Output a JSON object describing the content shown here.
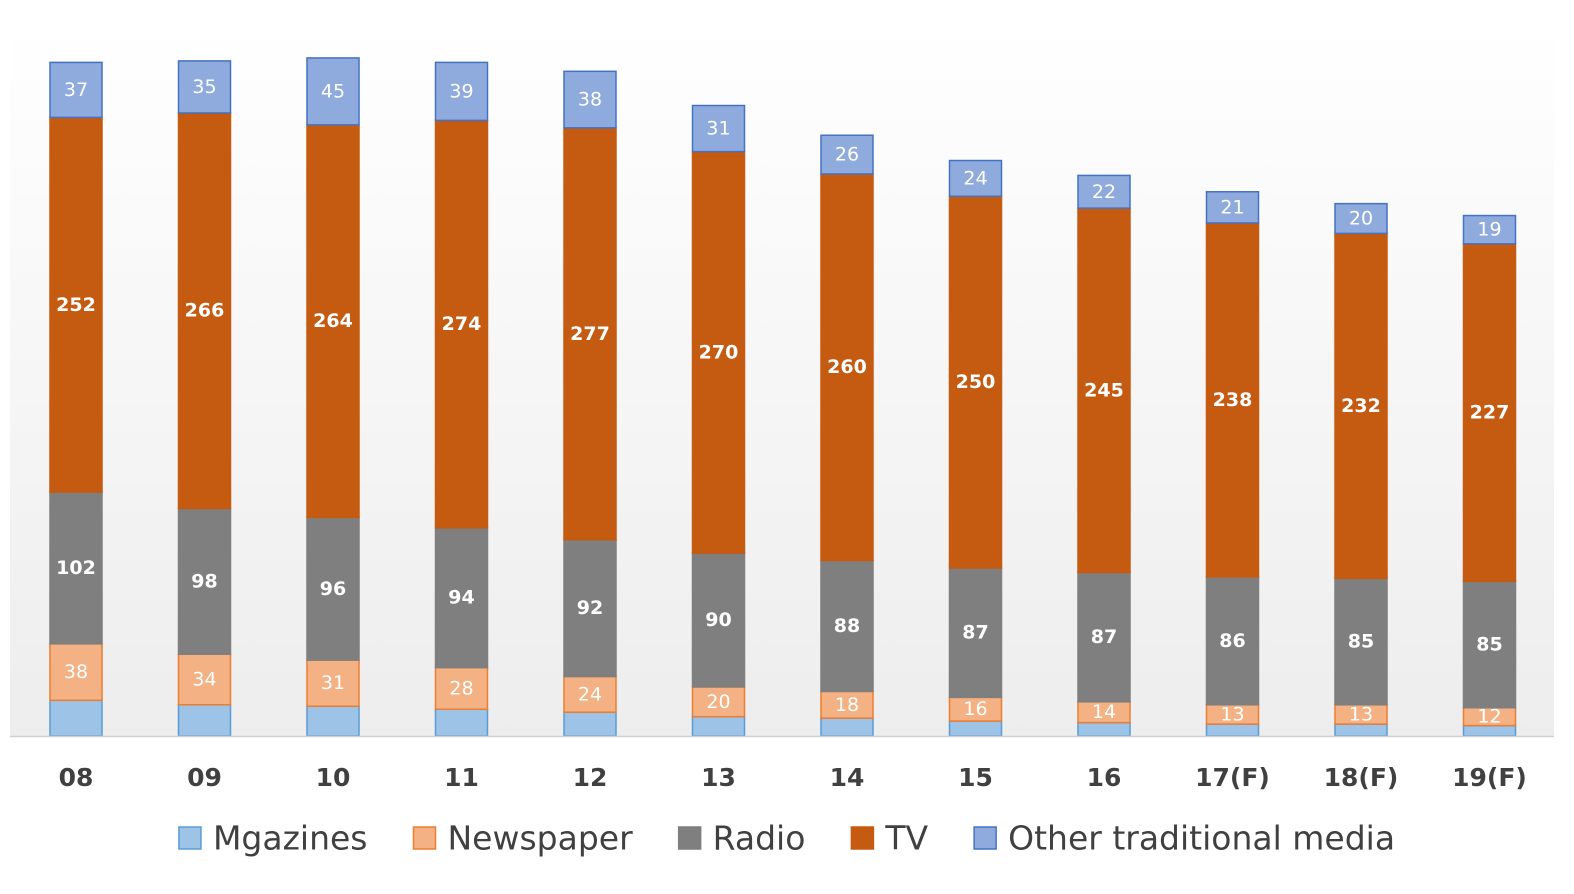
{
  "chart_data": {
    "type": "bar",
    "stacked": true,
    "title": "",
    "xlabel": "",
    "ylabel": "",
    "ylim": [
      0,
      470
    ],
    "grid": false,
    "legend_position": "bottom",
    "categories": [
      "08",
      "09",
      "10",
      "11",
      "12",
      "13",
      "14",
      "15",
      "16",
      "17(F)",
      "18(F)",
      "19(F)"
    ],
    "series": [
      {
        "name": "Mgazines",
        "color": "#9dc3e6",
        "border": "#5b9bd5",
        "label_color": "#ffffff",
        "show_labels": false,
        "values": [
          24,
          21,
          20,
          18,
          16,
          13,
          12,
          10,
          9,
          8,
          8,
          7
        ]
      },
      {
        "name": "Newspaper",
        "color": "#f4b183",
        "border": "#ed7d31",
        "label_color": "#ffffff",
        "show_labels": true,
        "values": [
          38,
          34,
          31,
          28,
          24,
          20,
          18,
          16,
          14,
          13,
          13,
          12
        ]
      },
      {
        "name": "Radio",
        "color": "#7f7f7f",
        "border": "#7f7f7f",
        "label_color": "#ffffff",
        "label_bold": true,
        "show_labels": true,
        "values": [
          102,
          98,
          96,
          94,
          92,
          90,
          88,
          87,
          87,
          86,
          85,
          85
        ]
      },
      {
        "name": "TV",
        "color": "#c55a11",
        "border": "#c55a11",
        "label_color": "#ffffff",
        "label_bold": true,
        "show_labels": true,
        "values": [
          252,
          266,
          264,
          274,
          277,
          270,
          260,
          250,
          245,
          238,
          232,
          227
        ]
      },
      {
        "name": "Other traditional media",
        "color": "#8faadc",
        "border": "#4472c4",
        "label_color": "#ffffff",
        "show_labels": true,
        "values": [
          37,
          35,
          45,
          39,
          38,
          31,
          26,
          24,
          22,
          21,
          20,
          19
        ]
      }
    ]
  }
}
